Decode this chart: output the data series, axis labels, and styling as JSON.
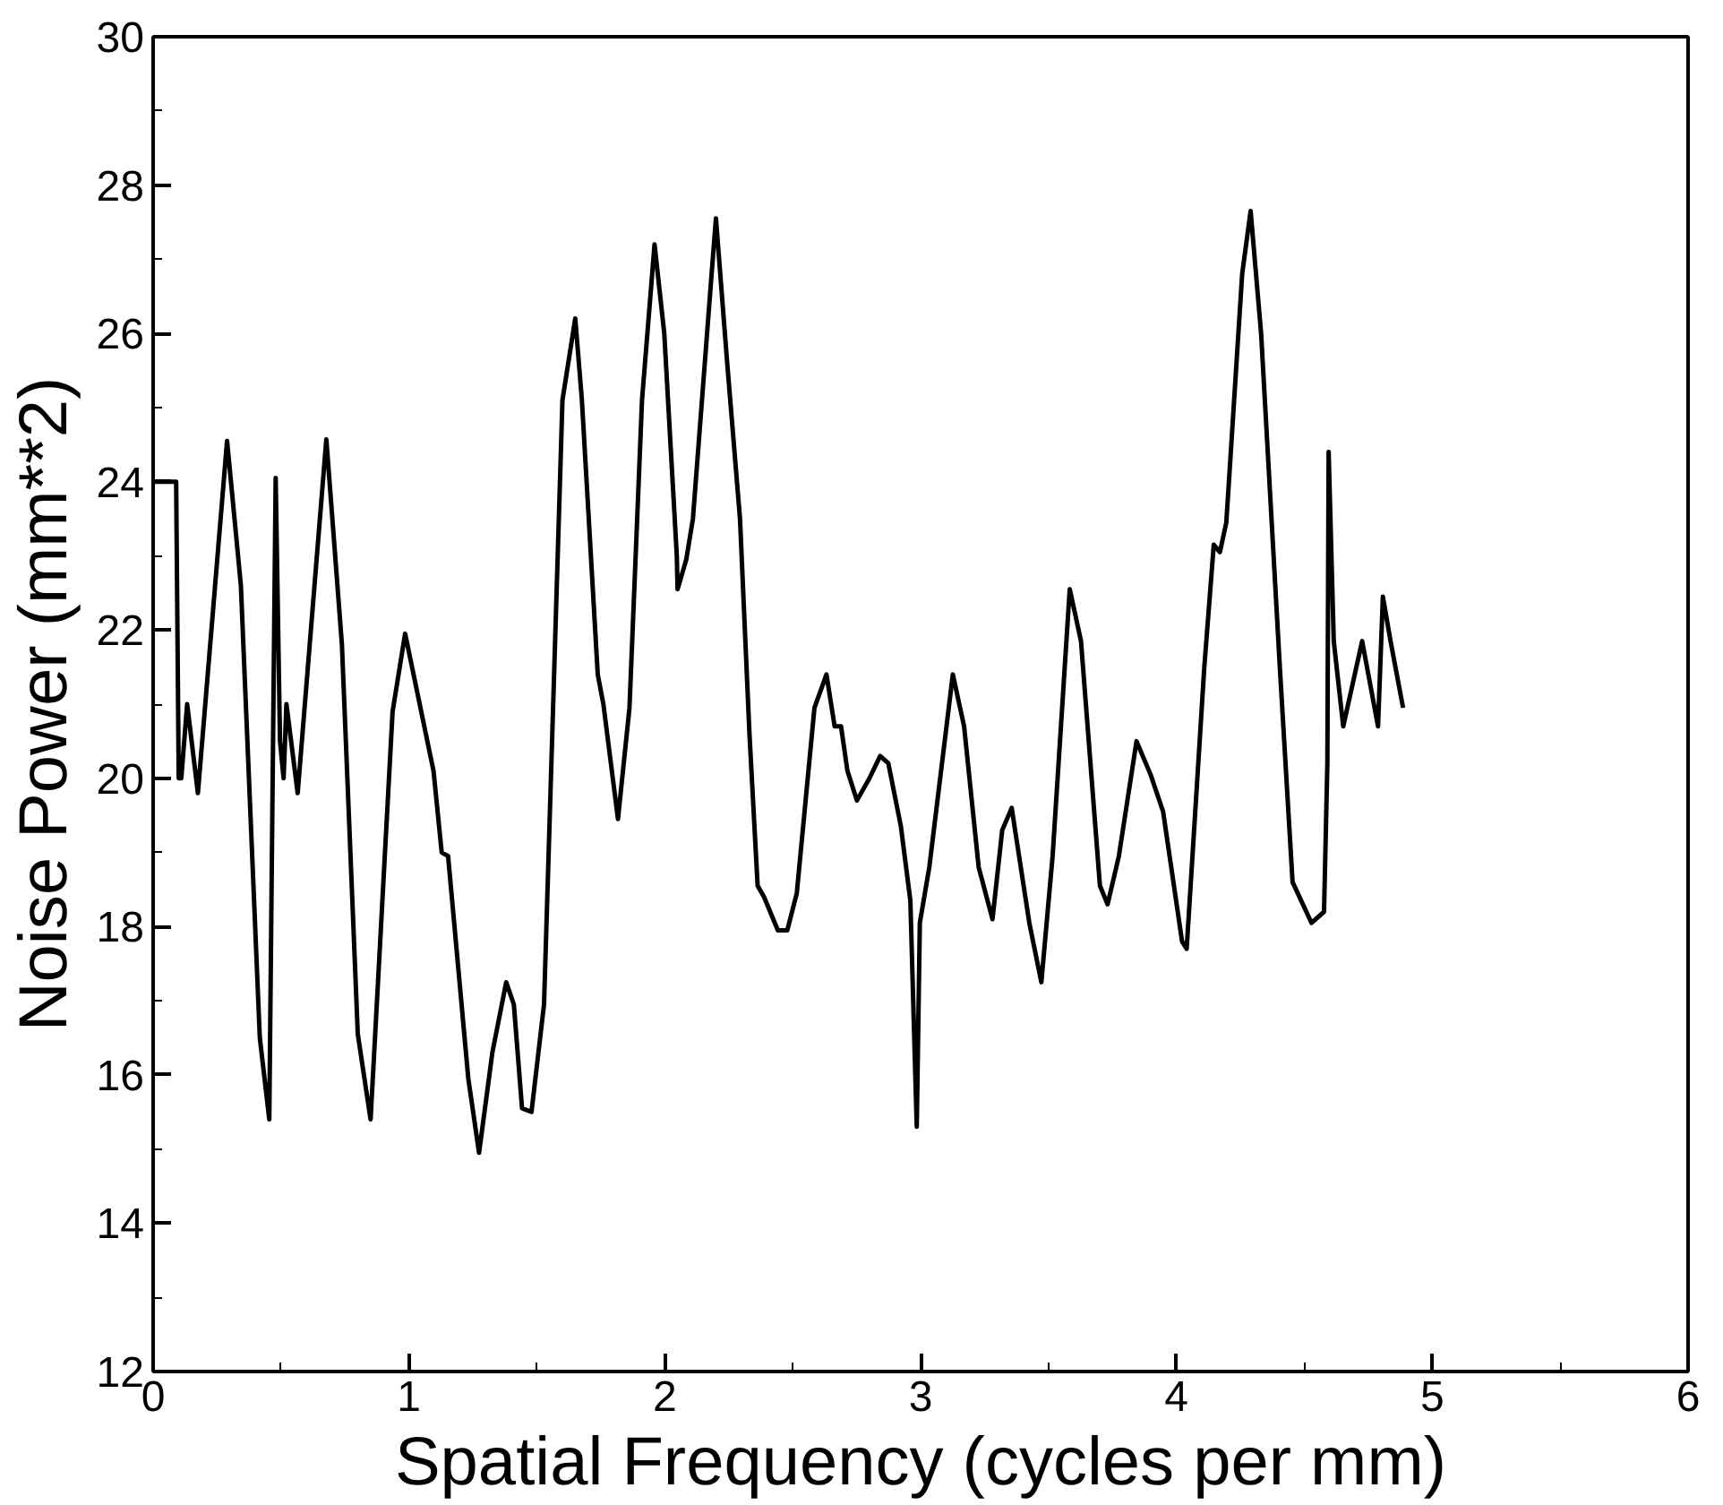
{
  "chart_data": {
    "type": "line",
    "xlabel": "Spatial Frequency (cycles per mm)",
    "ylabel": "Noise Power (mm**2)",
    "xlim": [
      0,
      6
    ],
    "ylim": [
      12,
      30
    ],
    "xticks": [
      0,
      1,
      2,
      3,
      4,
      5,
      6
    ],
    "yticks": [
      12,
      14,
      16,
      18,
      20,
      22,
      24,
      26,
      28,
      30
    ],
    "series": [
      {
        "color": "#000000",
        "x": [
          0,
          0.09,
          0.1,
          0.11,
          0.133,
          0.175,
          0.289,
          0.343,
          0.417,
          0.454,
          0.479,
          0.496,
          0.51,
          0.521,
          0.565,
          0.677,
          0.738,
          0.8,
          0.85,
          0.936,
          0.985,
          1.072,
          1.096,
          1.128,
          1.153,
          1.232,
          1.274,
          1.326,
          1.38,
          1.41,
          1.442,
          1.479,
          1.528,
          1.6,
          1.65,
          1.676,
          1.738,
          1.76,
          1.817,
          1.862,
          1.911,
          1.96,
          1.998,
          2.047,
          2.05,
          2.084,
          2.11,
          2.183,
          2.2,
          2.244,
          2.294,
          2.331,
          2.363,
          2.388,
          2.442,
          2.479,
          2.516,
          2.585,
          2.632,
          2.664,
          2.689,
          2.714,
          2.751,
          2.8,
          2.842,
          2.874,
          2.923,
          2.96,
          2.985,
          2.997,
          3.034,
          3.126,
          3.17,
          3.227,
          3.281,
          3.319,
          3.356,
          3.425,
          3.472,
          3.516,
          3.583,
          3.627,
          3.701,
          3.731,
          3.775,
          3.844,
          3.899,
          3.948,
          4.022,
          4.04,
          4.109,
          4.146,
          4.17,
          4.195,
          4.257,
          4.29,
          4.331,
          4.405,
          4.454,
          4.528,
          4.577,
          4.59,
          4.595,
          4.615,
          4.652,
          4.726,
          4.788,
          4.807,
          4.837,
          4.886
        ],
        "values": [
          24,
          24,
          20,
          20,
          21.0,
          19.8,
          24.55,
          22.6,
          16.5,
          15.4,
          24.05,
          20.5,
          20.0,
          21.0,
          19.8,
          24.57,
          21.8,
          16.55,
          15.4,
          20.9,
          21.95,
          20.5,
          20.1,
          19.0,
          18.95,
          15.95,
          14.95,
          16.3,
          17.25,
          16.95,
          15.55,
          15.5,
          16.95,
          25.1,
          26.2,
          25.1,
          21.4,
          21.0,
          19.45,
          20.95,
          25.1,
          27.2,
          26.0,
          23.0,
          22.55,
          22.95,
          23.5,
          26.8,
          27.55,
          25.6,
          23.5,
          20.6,
          18.55,
          18.4,
          17.95,
          17.95,
          18.45,
          20.95,
          21.4,
          20.7,
          20.7,
          20.1,
          19.7,
          20.0,
          20.3,
          20.2,
          19.35,
          18.35,
          15.3,
          18.05,
          18.8,
          21.4,
          20.7,
          18.8,
          18.1,
          19.3,
          19.6,
          18.05,
          17.25,
          18.95,
          22.55,
          21.85,
          18.55,
          18.3,
          18.95,
          20.5,
          20.05,
          19.55,
          17.8,
          17.7,
          21.5,
          23.15,
          23.05,
          23.45,
          26.8,
          27.65,
          26.0,
          21.45,
          18.6,
          18.05,
          18.2,
          20.2,
          24.4,
          21.85,
          20.7,
          21.85,
          20.7,
          22.45,
          21.85,
          20.95
        ]
      }
    ]
  }
}
